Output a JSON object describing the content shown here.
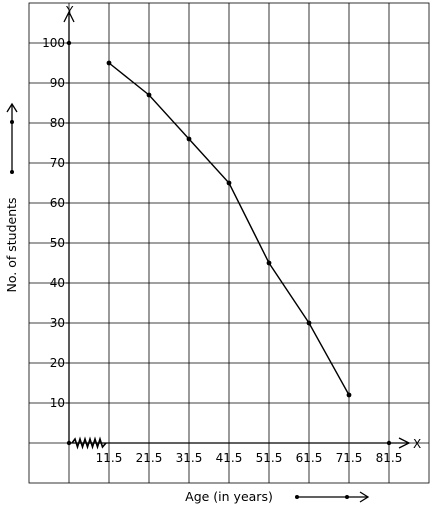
{
  "chart_data": {
    "type": "line",
    "title": "",
    "xlabel": "Age (in years)",
    "ylabel": "No. of students",
    "x_axis_letter": "X",
    "y_axis_letter": "Y",
    "xlim": [
      1.5,
      81.5
    ],
    "ylim": [
      0,
      100
    ],
    "x_ticks": [
      11.5,
      21.5,
      31.5,
      41.5,
      51.5,
      61.5,
      71.5,
      81.5
    ],
    "y_ticks": [
      10,
      20,
      30,
      40,
      50,
      60,
      70,
      80,
      90,
      100
    ],
    "axis_break": "zigzag on x-axis near origin",
    "grid": true,
    "legend": "none",
    "series": [
      {
        "x": [
          11.5,
          21.5,
          31.5,
          41.5,
          51.5,
          61.5,
          71.5
        ],
        "y": [
          95,
          87,
          76,
          65,
          45,
          30,
          12
        ]
      }
    ],
    "colors": {
      "line": "#000000",
      "grid": "#000000",
      "background": "#ffffff"
    }
  }
}
